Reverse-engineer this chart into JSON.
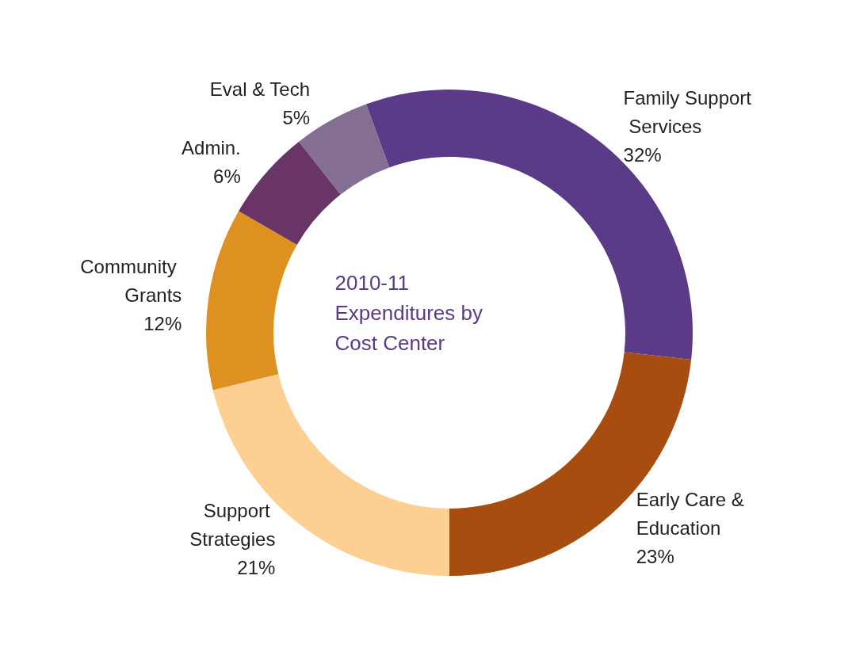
{
  "chart_data": {
    "type": "donut",
    "title": "2010-11 Expenditures by Cost Center",
    "categories": [
      "Family Support Services",
      "Early Care & Education",
      "Support Strategies",
      "Community Grants",
      "Admin.",
      "Eval & Tech"
    ],
    "values": [
      32,
      23,
      21,
      12,
      6,
      5
    ],
    "value_labels": [
      "32%",
      "23%",
      "21%",
      "12%",
      "6%",
      "5%"
    ],
    "colors": [
      "#5b3a87",
      "#a84d10",
      "#fdcf92",
      "#dc9121",
      "#693466",
      "#846f92"
    ],
    "legend": false
  }
}
